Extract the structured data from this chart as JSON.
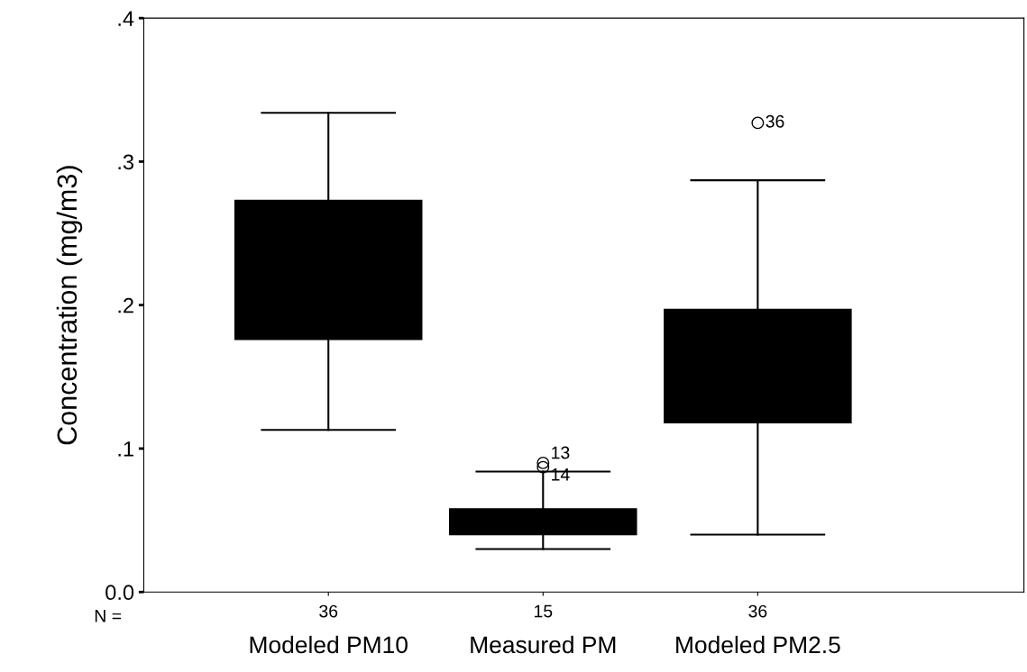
{
  "chart_data": {
    "type": "box",
    "ylabel": "Concentration (mg/m3)",
    "categories": [
      "Modeled PM10",
      "Measured PM",
      "Modeled PM2.5"
    ],
    "boxes": [
      {
        "low": 0.113,
        "q1": 0.176,
        "median": 0.211,
        "q3": 0.273,
        "high": 0.334
      },
      {
        "low": 0.03,
        "q1": 0.04,
        "median": 0.052,
        "q3": 0.058,
        "high": 0.084,
        "outliers": [
          0.09,
          0.087
        ]
      },
      {
        "low": 0.04,
        "q1": 0.118,
        "median": 0.159,
        "q3": 0.197,
        "high": 0.287,
        "outliers": [
          0.327
        ]
      }
    ],
    "color": "#000000",
    "ylim": [
      0,
      0.4
    ],
    "yticks": [
      {
        "value": 0,
        "label": "0.0"
      },
      {
        "value": 0.1,
        "label": ".1"
      },
      {
        "value": 0.2,
        "label": ".2"
      },
      {
        "value": 0.3,
        "label": ".3"
      },
      {
        "value": 0.4,
        "label": ".4"
      }
    ],
    "grid": false,
    "annotations": [
      "N =",
      "36",
      "15",
      "36",
      "13",
      "14",
      "36"
    ]
  }
}
